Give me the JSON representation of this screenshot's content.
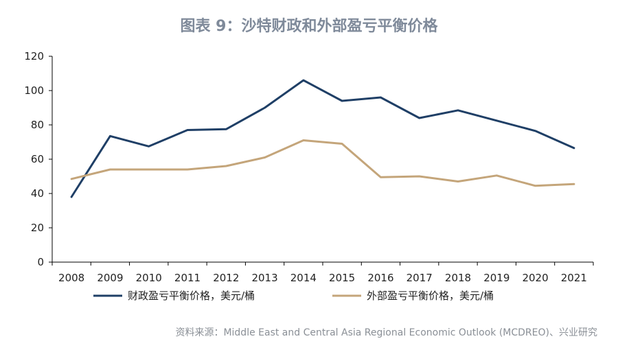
{
  "chart_data": {
    "type": "line",
    "title": "图表 9：沙特财政和外部盈亏平衡价格",
    "categories": [
      "2008",
      "2009",
      "2010",
      "2011",
      "2012",
      "2013",
      "2014",
      "2015",
      "2016",
      "2017",
      "2018",
      "2019",
      "2020",
      "2021"
    ],
    "series": [
      {
        "name": "财政盈亏平衡价格，美元/桶",
        "color": "#1f3f66",
        "values": [
          38,
          73.5,
          67.5,
          77,
          77.5,
          90,
          106,
          94,
          96,
          84,
          88.5,
          82.5,
          76.5,
          66.5
        ]
      },
      {
        "name": "外部盈亏平衡价格，美元/桶",
        "color": "#c4a57a",
        "values": [
          48.5,
          54,
          54,
          54,
          56,
          61,
          71,
          69,
          49.5,
          50,
          47,
          50.5,
          44.5,
          45.5
        ]
      }
    ],
    "ylim": [
      0,
      120
    ],
    "yticks": [
      0,
      20,
      40,
      60,
      80,
      100,
      120
    ],
    "grid": false,
    "legend_position": "bottom",
    "xlabel": "",
    "ylabel": "",
    "source": "资料来源：Middle East and Central Asia Regional Economic Outlook (MCDREO)、兴业研究"
  }
}
